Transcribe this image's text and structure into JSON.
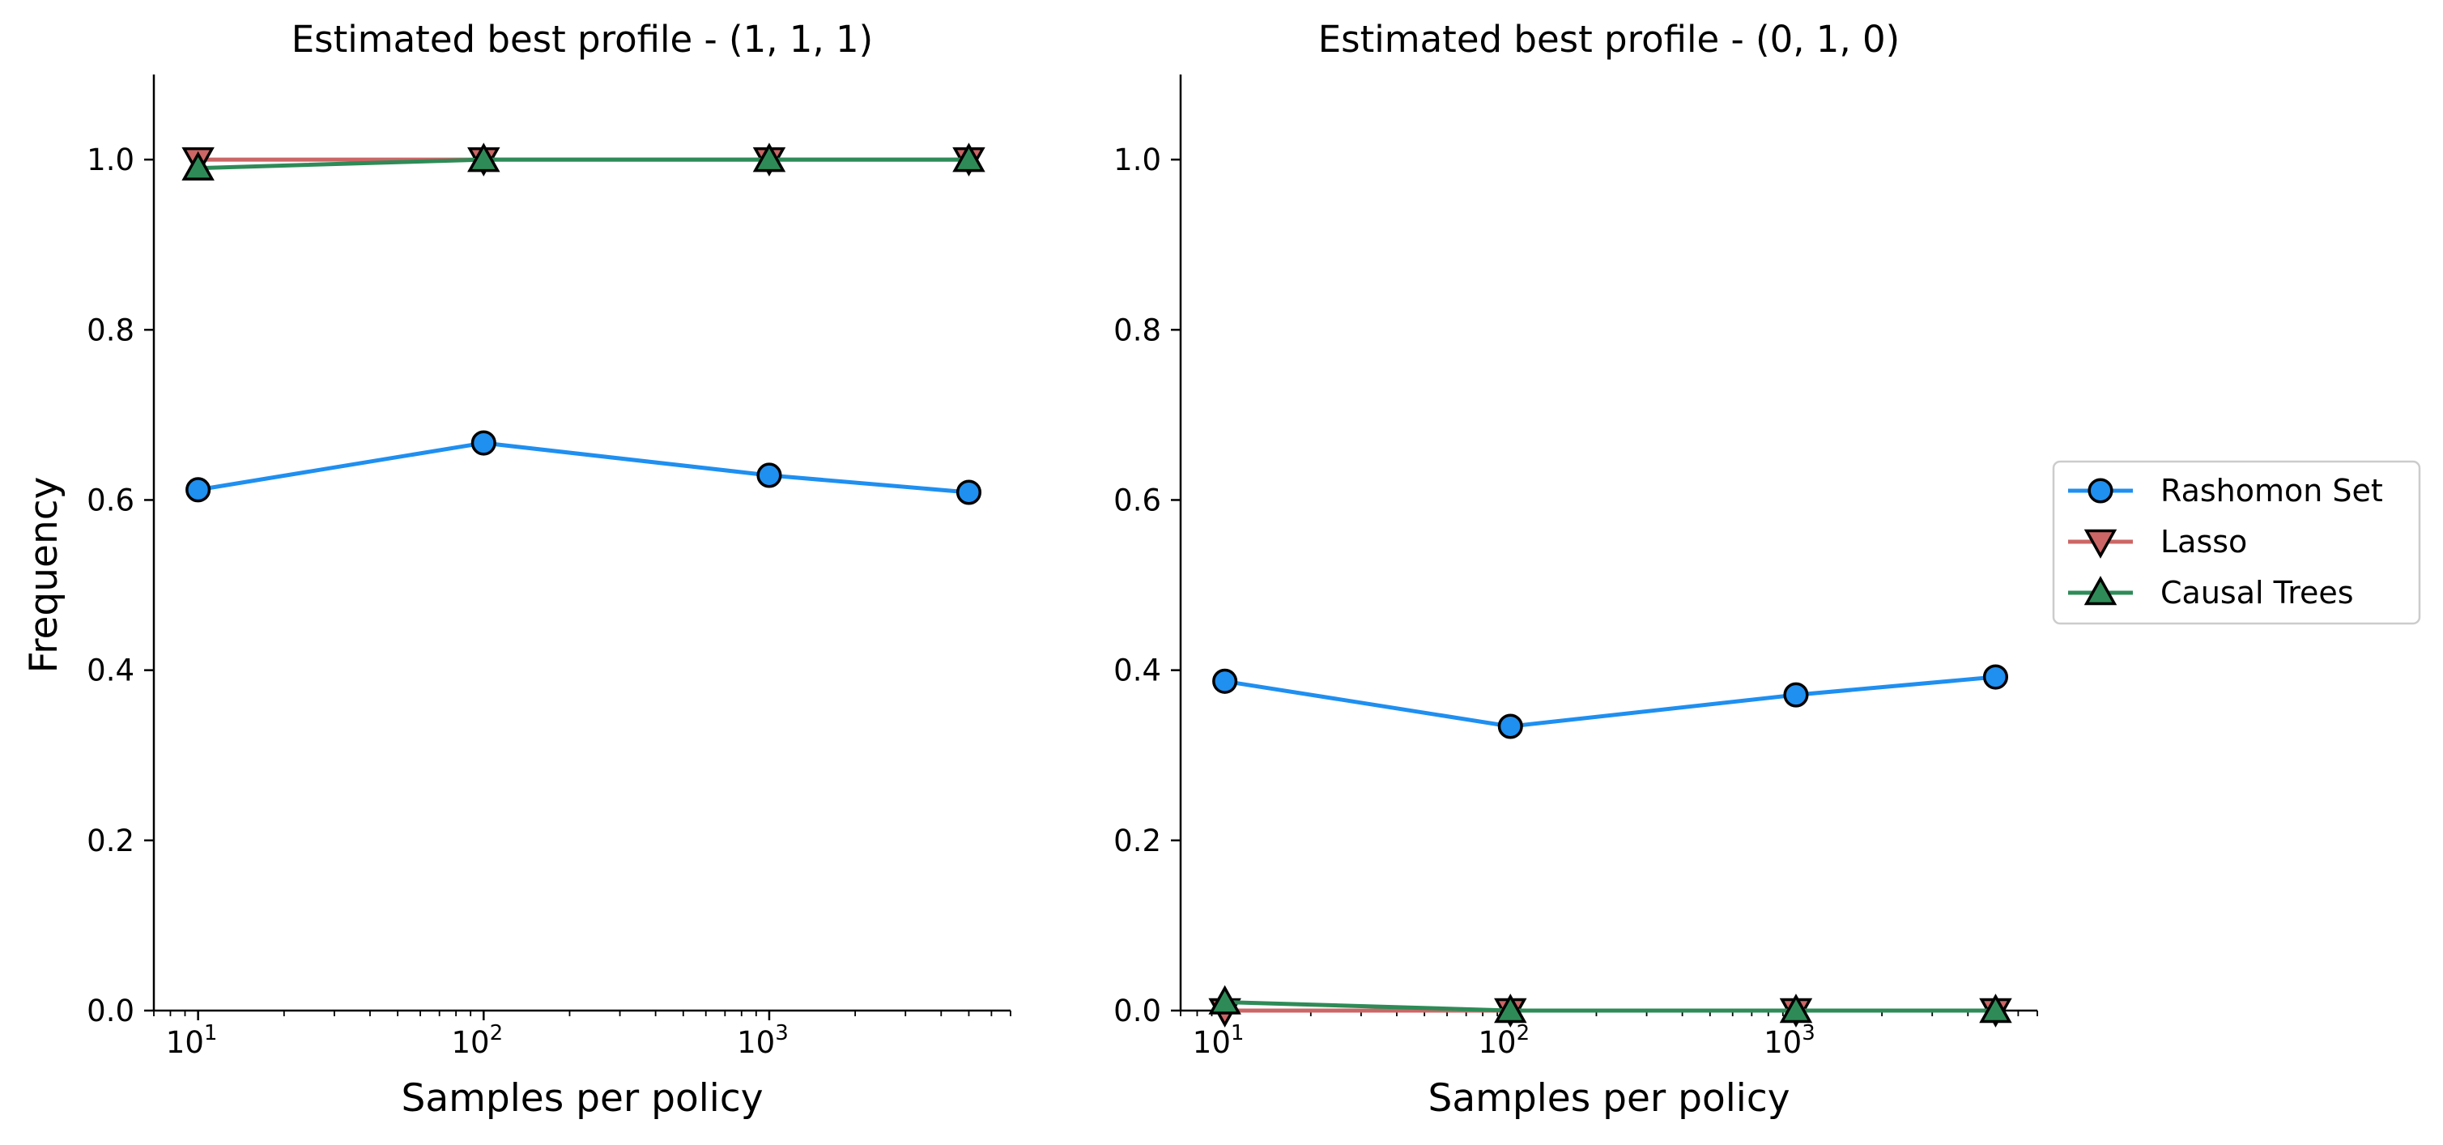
{
  "chart_data": [
    {
      "type": "line",
      "title": "Estimated best profile - (1, 1, 1)",
      "xlabel": "Samples per policy",
      "ylabel": "Frequency",
      "xscale": "log",
      "xlim": [
        7,
        7000
      ],
      "ylim": [
        0,
        1.1
      ],
      "x_ticks": [
        {
          "base": "10",
          "exp": "1"
        },
        {
          "base": "10",
          "exp": "2"
        },
        {
          "base": "10",
          "exp": "3"
        }
      ],
      "y_ticks": [
        "0.0",
        "0.2",
        "0.4",
        "0.6",
        "0.8",
        "1.0"
      ],
      "grid": false,
      "x": [
        10,
        100,
        1000,
        5000
      ],
      "series": [
        {
          "name": "Rashomon Set",
          "values": [
            0.612,
            0.667,
            0.629,
            0.609
          ]
        },
        {
          "name": "Lasso",
          "values": [
            1.0,
            1.0,
            1.0,
            1.0
          ]
        },
        {
          "name": "Causal Trees",
          "values": [
            0.99,
            1.0,
            1.0,
            1.0
          ]
        }
      ]
    },
    {
      "type": "line",
      "title": "Estimated best profile - (0, 1, 0)",
      "xlabel": "Samples per policy",
      "ylabel": "",
      "xscale": "log",
      "xlim": [
        7,
        7000
      ],
      "ylim": [
        0,
        1.1
      ],
      "x_ticks": [
        {
          "base": "10",
          "exp": "1"
        },
        {
          "base": "10",
          "exp": "2"
        },
        {
          "base": "10",
          "exp": "3"
        }
      ],
      "y_ticks": [
        "0.0",
        "0.2",
        "0.4",
        "0.6",
        "0.8",
        "1.0"
      ],
      "grid": false,
      "x": [
        10,
        100,
        1000,
        5000
      ],
      "series": [
        {
          "name": "Rashomon Set",
          "values": [
            0.387,
            0.334,
            0.371,
            0.392
          ]
        },
        {
          "name": "Lasso",
          "values": [
            0.0,
            0.0,
            0.0,
            0.0
          ]
        },
        {
          "name": "Causal Trees",
          "values": [
            0.01,
            0.0,
            0.0,
            0.0
          ]
        }
      ]
    }
  ],
  "legend": {
    "placement": "center-right",
    "entries": [
      {
        "label": "Rashomon Set",
        "marker": "circle",
        "color": "#1f8ff0"
      },
      {
        "label": "Lasso",
        "marker": "triangle-down",
        "color": "#cc6666"
      },
      {
        "label": "Causal Trees",
        "marker": "triangle-up",
        "color": "#2e8b57"
      }
    ]
  },
  "colors": {
    "rashomon": "#1f8ff0",
    "lasso": "#cc6666",
    "causal_trees": "#2e8b57",
    "marker_edge": "#000000"
  }
}
